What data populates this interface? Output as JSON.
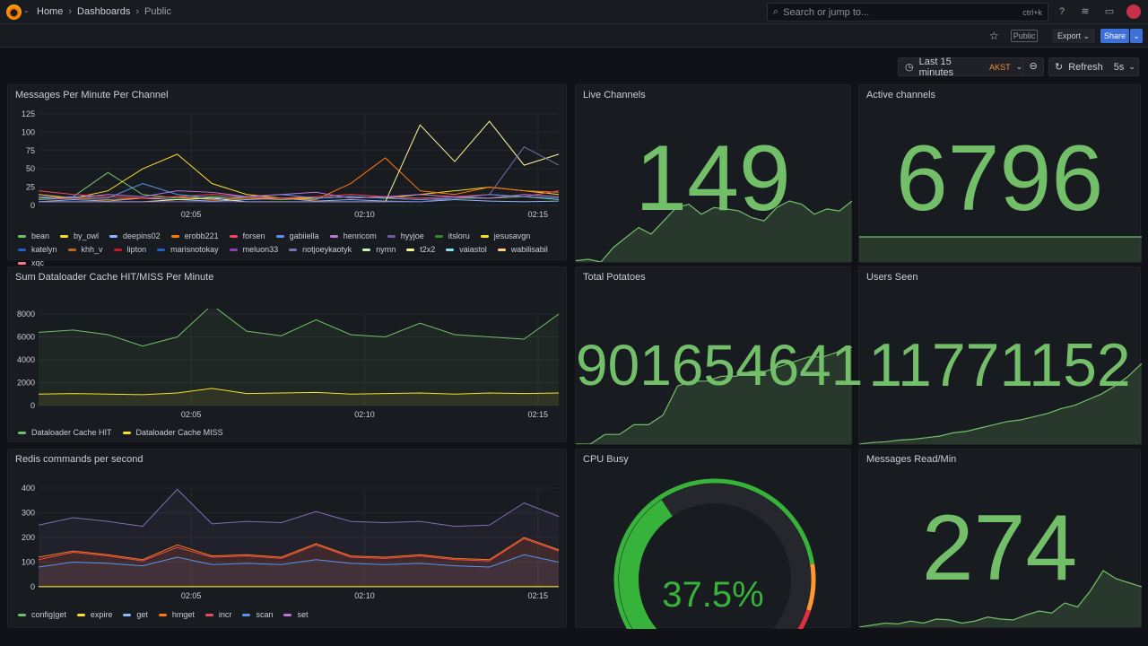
{
  "header": {
    "breadcrumbs": [
      "Home",
      "Dashboards",
      "Public"
    ],
    "search_placeholder": "Search or jump to...",
    "search_shortcut": "ctrl+k"
  },
  "toolbar": {
    "public_badge": "Public",
    "export_label": "Export",
    "share_label": "Share"
  },
  "time_picker": {
    "range": "Last 15 minutes",
    "timezone": "AKST",
    "refresh_label": "Refresh",
    "refresh_interval": "5s"
  },
  "colors": {
    "green": "#73bf69",
    "accent": "#3d71d9",
    "tz": "#f08a3e"
  },
  "panels": {
    "live_channels": {
      "title": "Live Channels",
      "value": "149",
      "spark": [
        60,
        62,
        58,
        80,
        95,
        110,
        100,
        120,
        140,
        145,
        130,
        140,
        138,
        135,
        125,
        120,
        140,
        150,
        145,
        130,
        138,
        135,
        150
      ]
    },
    "active_channels": {
      "title": "Active channels",
      "value": "6796",
      "spark": [
        6796,
        6796,
        6796,
        6796
      ]
    },
    "total_potatoes": {
      "title": "Total Potatoes",
      "value": "901654641",
      "spark": [
        0,
        0,
        10,
        10,
        20,
        20,
        30,
        60,
        65,
        65,
        70,
        70,
        75,
        75,
        80,
        85,
        90,
        90,
        95,
        100
      ]
    },
    "users_seen": {
      "title": "Users Seen",
      "value": "11771152",
      "spark": [
        0,
        2,
        3,
        5,
        6,
        8,
        10,
        14,
        16,
        20,
        24,
        28,
        30,
        34,
        38,
        44,
        48,
        55,
        62,
        72,
        84,
        100
      ]
    },
    "cpu_busy": {
      "title": "CPU Busy",
      "value": "37.5%",
      "percent": 37.5
    },
    "messages_read": {
      "title": "Messages Read/Min",
      "value": "274",
      "spark": [
        20,
        25,
        30,
        28,
        35,
        30,
        40,
        38,
        30,
        35,
        45,
        40,
        38,
        50,
        60,
        55,
        80,
        70,
        110,
        160,
        140,
        130,
        120
      ]
    }
  },
  "chart_data": [
    {
      "id": "c1",
      "type": "line",
      "title": "Messages Per Minute Per Channel",
      "xlabel": "",
      "ylabel": "",
      "ylim": [
        0,
        125
      ],
      "yticks": [
        0,
        25,
        50,
        75,
        100,
        125
      ],
      "xticks": [
        {
          "x": 5,
          "label": "02:05"
        },
        {
          "x": 10,
          "label": "02:10"
        },
        {
          "x": 15,
          "label": "02:15"
        }
      ],
      "xlim": [
        0.6,
        15.6
      ],
      "x": [
        0.6,
        1.6,
        2.6,
        3.6,
        4.6,
        5.6,
        6.6,
        7.6,
        8.6,
        9.6,
        10.6,
        11.6,
        12.6,
        13.6,
        14.6,
        15.6
      ],
      "series": [
        {
          "name": "bean",
          "color": "#73bf69",
          "values": [
            10,
            12,
            45,
            15,
            10,
            12,
            10,
            8,
            10,
            12,
            10,
            8,
            10,
            10,
            12,
            8
          ]
        },
        {
          "name": "by_owl",
          "color": "#fade2a",
          "values": [
            15,
            10,
            20,
            50,
            70,
            30,
            15,
            10,
            10,
            12,
            10,
            15,
            20,
            25,
            20,
            15
          ]
        },
        {
          "name": "deepins02",
          "color": "#8ab8ff",
          "values": [
            5,
            8,
            6,
            10,
            8,
            6,
            8,
            10,
            6,
            8,
            6,
            5,
            8,
            6,
            5,
            6
          ]
        },
        {
          "name": "erobb221",
          "color": "#ff780a",
          "values": [
            8,
            10,
            8,
            10,
            12,
            8,
            10,
            10,
            8,
            30,
            65,
            20,
            15,
            25,
            20,
            18
          ]
        },
        {
          "name": "forsen",
          "color": "#f2495c",
          "values": [
            20,
            15,
            12,
            10,
            12,
            15,
            12,
            10,
            12,
            15,
            12,
            10,
            12,
            15,
            12,
            20
          ]
        },
        {
          "name": "katelyn",
          "color": "#5794f2",
          "values": [
            8,
            12,
            10,
            30,
            15,
            10,
            12,
            15,
            10,
            12,
            10,
            8,
            10,
            15,
            12,
            10
          ]
        },
        {
          "name": "jesusavgn",
          "color": "#fff899",
          "values": [
            5,
            5,
            5,
            5,
            8,
            10,
            5,
            5,
            5,
            5,
            5,
            110,
            60,
            115,
            55,
            70
          ]
        },
        {
          "name": "notjoeykaotyk",
          "color": "#806eb7",
          "values": [
            5,
            5,
            5,
            5,
            5,
            5,
            5,
            5,
            5,
            5,
            5,
            5,
            10,
            15,
            80,
            55
          ]
        },
        {
          "name": "henricom",
          "color": "#b877d9",
          "values": [
            12,
            10,
            15,
            12,
            20,
            18,
            12,
            15,
            18,
            10,
            12,
            15,
            12,
            10,
            15,
            12
          ]
        }
      ],
      "legend": [
        [
          "bean",
          "#73bf69"
        ],
        [
          "by_owl",
          "#fade2a"
        ],
        [
          "deepins02",
          "#8ab8ff"
        ],
        [
          "erobb221",
          "#ff780a"
        ],
        [
          "forsen",
          "#f2495c"
        ],
        [
          "gabiiella",
          "#5794f2"
        ],
        [
          "henricom",
          "#b877d9"
        ],
        [
          "hyyjoe",
          "#705da0"
        ],
        [
          "itsloru",
          "#37872d"
        ],
        [
          "jesusavgn",
          "#fade2a"
        ],
        [
          "katelyn",
          "#1f60c4"
        ],
        [
          "khh_v",
          "#c4621e"
        ],
        [
          "lipton",
          "#c4162a"
        ],
        [
          "marisnotokay",
          "#1f60c4"
        ],
        [
          "meluon33",
          "#8f3bb8"
        ],
        [
          "notjoeykaotyk",
          "#806eb7"
        ],
        [
          "nymn",
          "#c8f2c2"
        ],
        [
          "t2x2",
          "#fff899"
        ],
        [
          "vaiastol",
          "#8ae0f2"
        ],
        [
          "wabilisabil",
          "#ffcb7d"
        ],
        [
          "xqc",
          "#ff7383"
        ]
      ]
    },
    {
      "id": "c2",
      "type": "line",
      "title": "Sum Dataloader Cache HIT/MISS Per Minute",
      "ylim": [
        0,
        8000
      ],
      "yticks": [
        0,
        2000,
        4000,
        6000,
        8000
      ],
      "xticks": [
        {
          "x": 5,
          "label": "02:05"
        },
        {
          "x": 10,
          "label": "02:10"
        },
        {
          "x": 15,
          "label": "02:15"
        }
      ],
      "xlim": [
        0.6,
        15.6
      ],
      "x": [
        0.6,
        1.6,
        2.6,
        3.6,
        4.6,
        5.6,
        6.6,
        7.6,
        8.6,
        9.6,
        10.6,
        11.6,
        12.6,
        13.6,
        14.6,
        15.6
      ],
      "series": [
        {
          "name": "Dataloader Cache HIT",
          "color": "#73bf69",
          "values": [
            6400,
            6600,
            6200,
            5200,
            6000,
            8800,
            6500,
            6100,
            7500,
            6200,
            6000,
            7200,
            6200,
            6000,
            5800,
            8000
          ]
        },
        {
          "name": "Dataloader Cache MISS",
          "color": "#fade2a",
          "values": [
            1000,
            1050,
            1000,
            950,
            1100,
            1500,
            1050,
            1100,
            1150,
            1000,
            1050,
            1100,
            1000,
            1100,
            1050,
            1100
          ]
        }
      ],
      "legend": [
        [
          "Dataloader Cache HIT",
          "#73bf69"
        ],
        [
          "Dataloader Cache MISS",
          "#fade2a"
        ]
      ]
    },
    {
      "id": "c3",
      "type": "line",
      "title": "Redis commands per second",
      "ylim": [
        0,
        400
      ],
      "yticks": [
        0,
        100,
        200,
        300,
        400
      ],
      "xticks": [
        {
          "x": 5,
          "label": "02:05"
        },
        {
          "x": 10,
          "label": "02:10"
        },
        {
          "x": 15,
          "label": "02:15"
        }
      ],
      "xlim": [
        0.6,
        15.6
      ],
      "x": [
        0.6,
        1.6,
        2.6,
        3.6,
        4.6,
        5.6,
        6.6,
        7.6,
        8.6,
        9.6,
        10.6,
        11.6,
        12.6,
        13.6,
        14.6,
        15.6
      ],
      "series": [
        {
          "name": "set",
          "color": "#806eb7",
          "values": [
            250,
            280,
            265,
            245,
            395,
            255,
            265,
            260,
            305,
            265,
            260,
            265,
            245,
            250,
            340,
            285
          ]
        },
        {
          "name": "hmget",
          "color": "#ff780a",
          "values": [
            120,
            145,
            130,
            110,
            170,
            125,
            130,
            120,
            175,
            125,
            120,
            130,
            115,
            110,
            200,
            150
          ]
        },
        {
          "name": "incr",
          "color": "#f2495c",
          "values": [
            110,
            140,
            125,
            105,
            160,
            120,
            125,
            115,
            170,
            120,
            115,
            125,
            110,
            105,
            195,
            145
          ]
        },
        {
          "name": "get",
          "color": "#5794f2",
          "values": [
            80,
            100,
            95,
            85,
            120,
            90,
            95,
            90,
            110,
            95,
            90,
            95,
            85,
            80,
            130,
            100
          ]
        },
        {
          "name": "config|get",
          "color": "#73bf69",
          "values": [
            0,
            0,
            0,
            0,
            0,
            0,
            0,
            0,
            0,
            0,
            0,
            0,
            0,
            0,
            0,
            0
          ]
        },
        {
          "name": "expire",
          "color": "#fade2a",
          "values": [
            1,
            1,
            1,
            1,
            1,
            1,
            1,
            1,
            1,
            1,
            1,
            1,
            1,
            1,
            1,
            1
          ]
        }
      ],
      "legend": [
        [
          "config|get",
          "#73bf69"
        ],
        [
          "expire",
          "#fade2a"
        ],
        [
          "get",
          "#8ab8ff"
        ],
        [
          "hmget",
          "#ff780a"
        ],
        [
          "incr",
          "#f2495c"
        ],
        [
          "scan",
          "#5794f2"
        ],
        [
          "set",
          "#b877d9"
        ]
      ]
    }
  ]
}
